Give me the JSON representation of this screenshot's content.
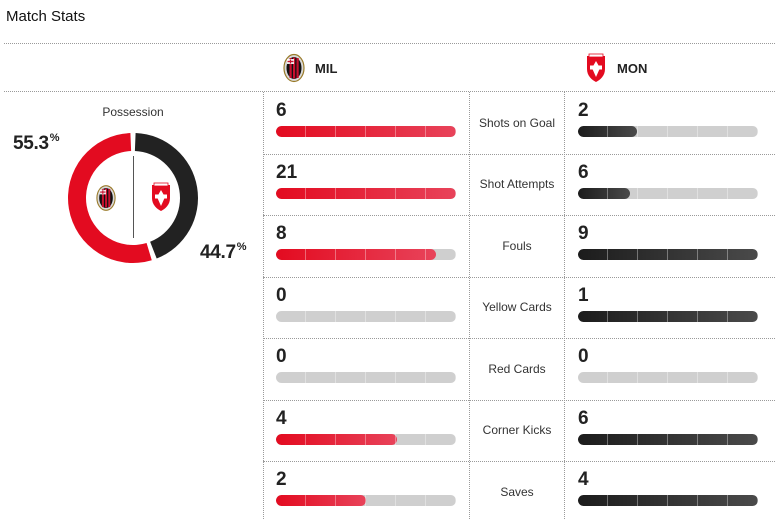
{
  "header": {
    "title": "Match Stats"
  },
  "teams": {
    "home": {
      "abbr": "MIL",
      "crest": "milan-crest-icon",
      "color": "#e30b20"
    },
    "away": {
      "abbr": "MON",
      "crest": "monza-crest-icon",
      "color": "#222222"
    }
  },
  "possession": {
    "label": "Possession",
    "home_pct": "55.3",
    "away_pct": "44.7",
    "home_value": 55.3,
    "away_value": 44.7,
    "unit": "%"
  },
  "stats": [
    {
      "label": "Shots on Goal",
      "home": "6",
      "away": "2",
      "home_fill": 1.0,
      "away_fill": 0.33
    },
    {
      "label": "Shot Attempts",
      "home": "21",
      "away": "6",
      "home_fill": 1.0,
      "away_fill": 0.29
    },
    {
      "label": "Fouls",
      "home": "8",
      "away": "9",
      "home_fill": 0.89,
      "away_fill": 1.0
    },
    {
      "label": "Yellow Cards",
      "home": "0",
      "away": "1",
      "home_fill": 0.0,
      "away_fill": 1.0
    },
    {
      "label": "Red Cards",
      "home": "0",
      "away": "0",
      "home_fill": 0.0,
      "away_fill": 0.0
    },
    {
      "label": "Corner Kicks",
      "home": "4",
      "away": "6",
      "home_fill": 0.67,
      "away_fill": 1.0
    },
    {
      "label": "Saves",
      "home": "2",
      "away": "4",
      "home_fill": 0.5,
      "away_fill": 1.0
    }
  ]
}
